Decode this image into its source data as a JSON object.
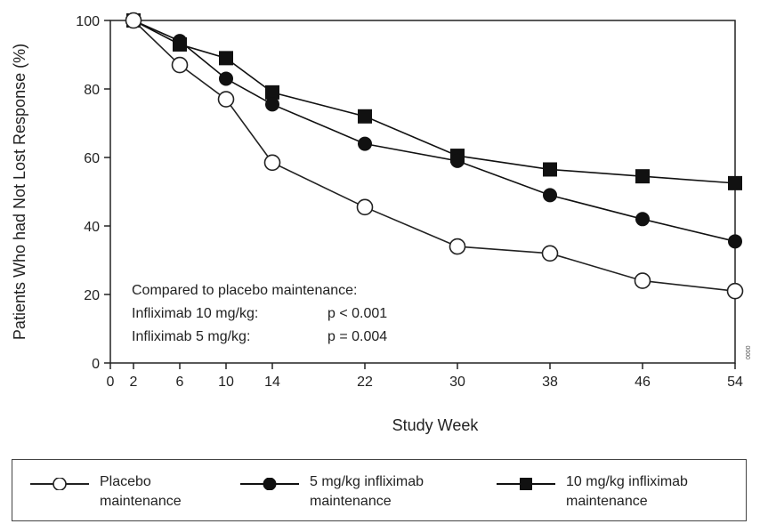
{
  "chart_data": {
    "type": "line",
    "xlabel": "Study Week",
    "ylabel": "Patients Who had Not Lost Response (%)",
    "x_ticks": [
      0,
      2,
      6,
      10,
      14,
      22,
      30,
      38,
      46,
      54
    ],
    "y_ticks": [
      0,
      20,
      40,
      60,
      80,
      100
    ],
    "xlim": [
      0,
      54
    ],
    "ylim": [
      0,
      100
    ],
    "grid": false,
    "legend_placement": "bottom",
    "annotation_lines": [
      "Compared to placebo maintenance:",
      "Infliximab 10 mg/kg:",
      "p < 0.001",
      "Infliximab 5 mg/kg:",
      "p = 0.004"
    ],
    "side_text": "0000",
    "series": [
      {
        "name": "Placebo maintenance",
        "marker": "open-circle",
        "color": "#222222",
        "x": [
          2,
          6,
          10,
          14,
          22,
          30,
          38,
          46,
          54
        ],
        "values": [
          100,
          87,
          77,
          58.5,
          45.5,
          34,
          32,
          24,
          21
        ]
      },
      {
        "name": "5 mg/kg infliximab maintenance",
        "marker": "filled-circle",
        "color": "#111111",
        "x": [
          2,
          6,
          10,
          14,
          22,
          30,
          38,
          46,
          54
        ],
        "values": [
          100,
          94,
          83,
          75.5,
          64,
          59,
          49,
          42,
          35.5
        ]
      },
      {
        "name": "10 mg/kg infliximab maintenance",
        "marker": "filled-square",
        "color": "#111111",
        "x": [
          2,
          6,
          10,
          14,
          22,
          30,
          38,
          46,
          54
        ],
        "values": [
          100,
          93,
          89,
          79,
          72,
          60.5,
          56.5,
          54.5,
          52.5
        ]
      }
    ]
  },
  "legend": {
    "placebo_label": "Placebo\nmaintenance",
    "five_label": "5 mg/kg infliximab\nmaintenance",
    "ten_label": "10 mg/kg infliximab\nmaintenance"
  }
}
